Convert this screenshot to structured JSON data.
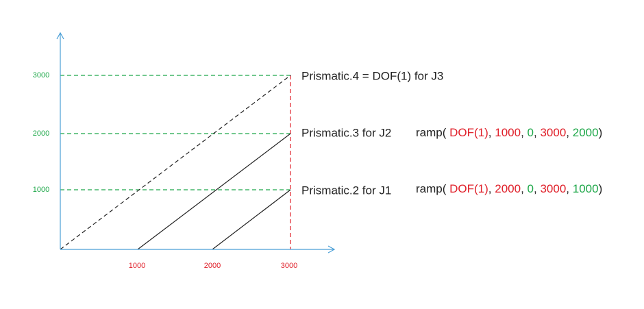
{
  "x_axis": {
    "ticks": [
      "1000",
      "2000",
      "3000"
    ],
    "color": "#e0202a"
  },
  "y_axis": {
    "ticks": [
      "1000",
      "2000",
      "3000"
    ],
    "color": "#1fa84a"
  },
  "labels": [
    "Prismatic.4 = DOF(1) for J3",
    "Prismatic.3 for J2",
    "Prismatic.2 for J1"
  ],
  "formulas": [
    [
      {
        "text": "ramp( ",
        "color": "#222222"
      },
      {
        "text": "DOF(1)",
        "color": "#e0202a"
      },
      {
        "text": ", ",
        "color": "#222222"
      },
      {
        "text": "1000",
        "color": "#e0202a"
      },
      {
        "text": ", ",
        "color": "#222222"
      },
      {
        "text": "0",
        "color": "#1fa84a"
      },
      {
        "text": ", ",
        "color": "#222222"
      },
      {
        "text": "3000",
        "color": "#e0202a"
      },
      {
        "text": ", ",
        "color": "#222222"
      },
      {
        "text": "2000",
        "color": "#1fa84a"
      },
      {
        "text": ")",
        "color": "#222222"
      }
    ],
    [
      {
        "text": "ramp( ",
        "color": "#222222"
      },
      {
        "text": "DOF(1)",
        "color": "#e0202a"
      },
      {
        "text": ", ",
        "color": "#222222"
      },
      {
        "text": "2000",
        "color": "#e0202a"
      },
      {
        "text": ", ",
        "color": "#222222"
      },
      {
        "text": "0",
        "color": "#1fa84a"
      },
      {
        "text": ", ",
        "color": "#222222"
      },
      {
        "text": "3000",
        "color": "#e0202a"
      },
      {
        "text": ", ",
        "color": "#222222"
      },
      {
        "text": "1000",
        "color": "#1fa84a"
      },
      {
        "text": ")",
        "color": "#222222"
      }
    ]
  ]
}
